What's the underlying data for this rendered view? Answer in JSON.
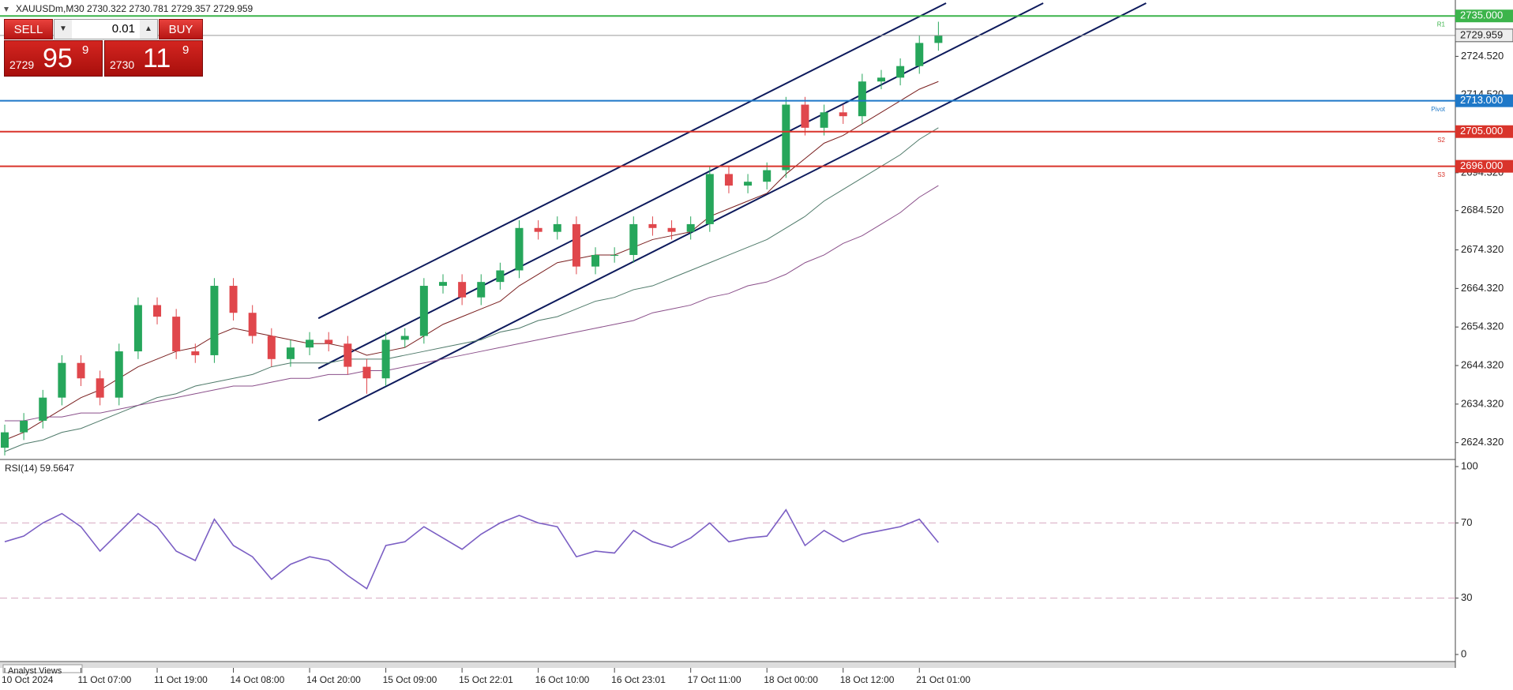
{
  "header": {
    "title": "XAUUSDm,M30  2730.322 2730.781 2729.357 2729.959"
  },
  "trade_panel": {
    "sell": "SELL",
    "buy": "BUY",
    "lot": "0.01",
    "bid": {
      "big": "2729",
      "pips": "95",
      "point": "9"
    },
    "ask": {
      "big": "2730",
      "pips": "11",
      "point": "9"
    }
  },
  "footer_tab": "Analyst Views",
  "chart_data": [
    {
      "type": "candlestick",
      "categories": [
        "10 Oct 2024",
        null,
        null,
        null,
        "11 Oct 07:00",
        null,
        null,
        null,
        "11 Oct 19:00",
        null,
        null,
        null,
        "14 Oct 08:00",
        null,
        null,
        null,
        "14 Oct 20:00",
        null,
        null,
        null,
        "15 Oct 09:00",
        null,
        null,
        null,
        "15 Oct 22:01",
        null,
        null,
        null,
        "16 Oct 10:00",
        null,
        null,
        null,
        "16 Oct 23:01",
        null,
        null,
        null,
        "17 Oct 11:00",
        null,
        null,
        null,
        "18 Oct 00:00",
        null,
        null,
        null,
        "18 Oct 12:00",
        null,
        null,
        null,
        "21 Oct 01:00",
        null
      ],
      "open": [
        2623,
        2627,
        2630,
        2636,
        2645,
        2641,
        2636,
        2648,
        2660,
        2657,
        2648,
        2647,
        2665,
        2658,
        2652,
        2646,
        2649,
        2651,
        2650,
        2644,
        2641,
        2651,
        2652,
        2665,
        2666,
        2662,
        2666,
        2669,
        2680,
        2679,
        2681,
        2670,
        2673,
        2673,
        2681,
        2680,
        2679,
        2681,
        2694,
        2691,
        2692,
        2695,
        2712,
        2706,
        2710,
        2709,
        2718,
        2719,
        2722,
        2728
      ],
      "high": [
        2629,
        2632,
        2638,
        2647,
        2647,
        2643,
        2650,
        2662,
        2662,
        2659,
        2650,
        2667,
        2667,
        2660,
        2654,
        2651,
        2653,
        2653,
        2652,
        2646,
        2653,
        2654,
        2667,
        2668,
        2668,
        2668,
        2671,
        2682,
        2682,
        2683,
        2683,
        2675,
        2675,
        2683,
        2683,
        2682,
        2683,
        2696,
        2696,
        2694,
        2697,
        2714,
        2714,
        2712,
        2712,
        2720,
        2721,
        2724,
        2730,
        2733.5
      ],
      "low": [
        2621,
        2625,
        2628,
        2634,
        2639,
        2634,
        2634,
        2646,
        2655,
        2646,
        2645,
        2645,
        2656,
        2650,
        2644,
        2644,
        2647,
        2648,
        2642,
        2637,
        2639,
        2649,
        2650,
        2663,
        2660,
        2660,
        2664,
        2667,
        2677,
        2677,
        2668,
        2668,
        2671,
        2671,
        2678,
        2677,
        2677,
        2679,
        2689,
        2689,
        2690,
        2693,
        2704,
        2704,
        2707,
        2707,
        2716,
        2717,
        2720,
        2726
      ],
      "close": [
        2627,
        2630,
        2636,
        2645,
        2641,
        2636,
        2648,
        2660,
        2657,
        2648,
        2647,
        2665,
        2658,
        2652,
        2646,
        2649,
        2651,
        2650,
        2644,
        2641,
        2651,
        2652,
        2665,
        2666,
        2662,
        2666,
        2669,
        2680,
        2679,
        2681,
        2670,
        2673,
        2673,
        2681,
        2680,
        2679,
        2681,
        2694,
        2691,
        2692,
        2695,
        2712,
        2706,
        2710,
        2709,
        2718,
        2719,
        2722,
        2728,
        2729.959
      ],
      "up_color": "#26a65b",
      "down_color": "#e0474c",
      "moving_averages": [
        {
          "color": "#7a1f1f",
          "values": [
            2625,
            2627,
            2630,
            2633,
            2636,
            2638,
            2641,
            2644,
            2646,
            2648,
            2649,
            2652,
            2654,
            2653,
            2652,
            2651,
            2650,
            2650,
            2649,
            2647,
            2648,
            2649,
            2652,
            2655,
            2657,
            2659,
            2661,
            2665,
            2668,
            2671,
            2672,
            2673,
            2673,
            2675,
            2677,
            2678,
            2679,
            2683,
            2685,
            2687,
            2689,
            2694,
            2698,
            2702,
            2704,
            2707,
            2710,
            2713,
            2716,
            2718
          ]
        },
        {
          "color": "#4f7a6a",
          "values": [
            2622,
            2624,
            2625,
            2627,
            2628,
            2630,
            2632,
            2634,
            2636,
            2637,
            2639,
            2640,
            2641,
            2642,
            2644,
            2645,
            2645,
            2645,
            2646,
            2646,
            2646,
            2647,
            2648,
            2649,
            2650,
            2651,
            2653,
            2654,
            2656,
            2657,
            2659,
            2661,
            2662,
            2664,
            2665,
            2667,
            2669,
            2671,
            2673,
            2675,
            2677,
            2680,
            2683,
            2687,
            2690,
            2693,
            2696,
            2699,
            2703,
            2706
          ]
        },
        {
          "color": "#8a4f8a",
          "values": [
            2630,
            2630,
            2631,
            2631,
            2632,
            2632,
            2633,
            2634,
            2635,
            2636,
            2637,
            2638,
            2639,
            2639,
            2640,
            2641,
            2641,
            2642,
            2642,
            2643,
            2643,
            2644,
            2645,
            2646,
            2647,
            2648,
            2649,
            2650,
            2651,
            2652,
            2653,
            2654,
            2655,
            2656,
            2658,
            2659,
            2660,
            2662,
            2663,
            2665,
            2666,
            2668,
            2671,
            2673,
            2676,
            2678,
            2681,
            2684,
            2688,
            2691
          ]
        }
      ],
      "trendlines": [
        {
          "color": "#0d1a5c",
          "start": [
            16.46,
            2656.57
          ],
          "end": [
            49.4,
            2738.32
          ]
        },
        {
          "color": "#0d1a5c",
          "start": [
            16.46,
            2643.57
          ],
          "end": [
            54.5,
            2738.32
          ]
        },
        {
          "color": "#0d1a5c",
          "start": [
            16.46,
            2630.07
          ],
          "end": [
            59.9,
            2738.32
          ]
        }
      ],
      "levels": [
        {
          "value": 2735,
          "label": "2735.000",
          "tag": "R1",
          "color": "#3cb44b"
        },
        {
          "value": 2713,
          "label": "2713.000",
          "tag": "Pivot",
          "color": "#1e78c8"
        },
        {
          "value": 2705,
          "label": "2705.000",
          "tag": "S2",
          "color": "#d9342b"
        },
        {
          "value": 2696,
          "label": "2696.000",
          "tag": "S3",
          "color": "#d9342b"
        }
      ],
      "current_price": {
        "value": 2729.959,
        "label": "2729.959",
        "color": "#9a9a9a"
      },
      "ylim": [
        2620.57,
        2738.32
      ],
      "yticks": [
        {
          "value": 2624.32,
          "label": "2624.320"
        },
        {
          "value": 2634.32,
          "label": "2634.320"
        },
        {
          "value": 2644.32,
          "label": "2644.320"
        },
        {
          "value": 2654.32,
          "label": "2654.320"
        },
        {
          "value": 2664.32,
          "label": "2664.320"
        },
        {
          "value": 2674.32,
          "label": "2674.320"
        },
        {
          "value": 2684.52,
          "label": "2684.520"
        },
        {
          "value": 2694.32,
          "label": "2694.320"
        },
        {
          "value": 2714.52,
          "label": "2714.520"
        },
        {
          "value": 2724.52,
          "label": "2724.520"
        }
      ]
    },
    {
      "type": "line",
      "title": "RSI(14) 59.5647",
      "color": "#7b5fc4",
      "values": [
        60,
        63,
        70,
        75,
        68,
        55,
        65,
        75,
        68,
        55,
        50,
        72,
        58,
        52,
        40,
        48,
        52,
        50,
        42,
        35,
        58,
        60,
        68,
        62,
        56,
        64,
        70,
        74,
        70,
        68,
        52,
        55,
        54,
        66,
        60,
        57,
        62,
        70,
        60,
        62,
        63,
        77,
        58,
        66,
        60,
        64,
        66,
        68,
        72,
        59.5647
      ],
      "levels": [
        30,
        70
      ],
      "level_color": "#d8a8c0",
      "ylim": [
        0,
        100
      ],
      "yticks": [
        0,
        30,
        70,
        100
      ]
    }
  ]
}
